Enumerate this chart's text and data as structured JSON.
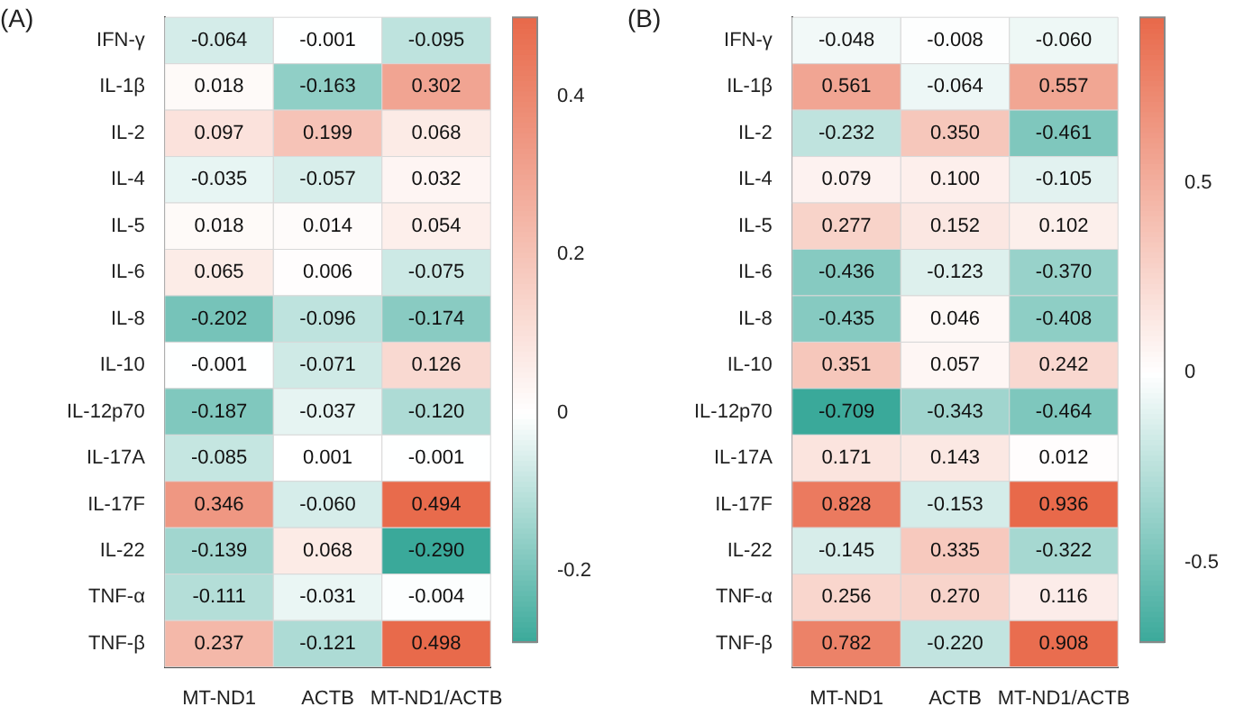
{
  "chart_data": [
    {
      "type": "heatmap",
      "title": "(A)",
      "categories": [
        "MT-ND1",
        "ACTB",
        "MT-ND1/ACTB"
      ],
      "y_categories": [
        "IFN-γ",
        "IL-1β",
        "IL-2",
        "IL-4",
        "IL-5",
        "IL-6",
        "IL-8",
        "IL-10",
        "IL-12p70",
        "IL-17A",
        "IL-17F",
        "IL-22",
        "TNF-α",
        "TNF-β"
      ],
      "cells": [
        [
          -0.064,
          -0.001,
          -0.095
        ],
        [
          0.018,
          -0.163,
          0.302
        ],
        [
          0.097,
          0.199,
          0.068
        ],
        [
          -0.035,
          -0.057,
          0.032
        ],
        [
          0.018,
          0.014,
          0.054
        ],
        [
          0.065,
          0.006,
          -0.075
        ],
        [
          -0.202,
          -0.096,
          -0.174
        ],
        [
          -0.001,
          -0.071,
          0.126
        ],
        [
          -0.187,
          -0.037,
          -0.12
        ],
        [
          -0.085,
          0.001,
          -0.001
        ],
        [
          0.346,
          -0.06,
          0.494
        ],
        [
          -0.139,
          0.068,
          -0.29
        ],
        [
          -0.111,
          -0.031,
          -0.004
        ],
        [
          0.237,
          -0.121,
          0.498
        ]
      ],
      "cell_labels": [
        [
          "-0.064",
          "-0.001",
          "-0.095"
        ],
        [
          "0.018",
          "-0.163",
          "0.302"
        ],
        [
          "0.097",
          "0.199",
          "0.068"
        ],
        [
          "-0.035",
          "-0.057",
          "0.032"
        ],
        [
          "0.018",
          "0.014",
          "0.054"
        ],
        [
          "0.065",
          "0.006",
          "-0.075"
        ],
        [
          "-0.202",
          "-0.096",
          "-0.174"
        ],
        [
          "-0.001",
          "-0.071",
          "0.126"
        ],
        [
          "-0.187",
          "-0.037",
          "-0.120"
        ],
        [
          "-0.085",
          "0.001",
          "-0.001"
        ],
        [
          "0.346",
          "-0.060",
          "0.494"
        ],
        [
          "-0.139",
          "0.068",
          "-0.290"
        ],
        [
          "-0.111",
          "-0.031",
          "-0.004"
        ],
        [
          "0.237",
          "-0.121",
          "0.498"
        ]
      ],
      "clim": [
        -0.29,
        0.5
      ],
      "cticks": [
        -0.2,
        0,
        0.2,
        0.4
      ],
      "colors": [
        "#3aa99a",
        "#ffffff",
        "#e8694a"
      ]
    },
    {
      "type": "heatmap",
      "title": "(B)",
      "categories": [
        "MT-ND1",
        "ACTB",
        "MT-ND1/ACTB"
      ],
      "y_categories": [
        "IFN-γ",
        "IL-1β",
        "IL-2",
        "IL-4",
        "IL-5",
        "IL-6",
        "IL-8",
        "IL-10",
        "IL-12p70",
        "IL-17A",
        "IL-17F",
        "IL-22",
        "TNF-α",
        "TNF-β"
      ],
      "cells": [
        [
          -0.048,
          -0.008,
          -0.06
        ],
        [
          0.561,
          -0.064,
          0.557
        ],
        [
          -0.232,
          0.35,
          -0.461
        ],
        [
          0.079,
          0.1,
          -0.105
        ],
        [
          0.277,
          0.152,
          0.102
        ],
        [
          -0.436,
          -0.123,
          -0.37
        ],
        [
          -0.435,
          0.046,
          -0.408
        ],
        [
          0.351,
          0.057,
          0.242
        ],
        [
          -0.709,
          -0.343,
          -0.464
        ],
        [
          0.171,
          0.143,
          0.012
        ],
        [
          0.828,
          -0.153,
          0.936
        ],
        [
          -0.145,
          0.335,
          -0.322
        ],
        [
          0.256,
          0.27,
          0.116
        ],
        [
          0.782,
          -0.22,
          0.908
        ]
      ],
      "cell_labels": [
        [
          "-0.048",
          "-0.008",
          "-0.060"
        ],
        [
          "0.561",
          "-0.064",
          "0.557"
        ],
        [
          "-0.232",
          "0.350",
          "-0.461"
        ],
        [
          "0.079",
          "0.100",
          "-0.105"
        ],
        [
          "0.277",
          "0.152",
          "0.102"
        ],
        [
          "-0.436",
          "-0.123",
          "-0.370"
        ],
        [
          "-0.435",
          "0.046",
          "-0.408"
        ],
        [
          "0.351",
          "0.057",
          "0.242"
        ],
        [
          "-0.709",
          "-0.343",
          "-0.464"
        ],
        [
          "0.171",
          "0.143",
          "0.012"
        ],
        [
          "0.828",
          "-0.153",
          "0.936"
        ],
        [
          "-0.145",
          "0.335",
          "-0.322"
        ],
        [
          "0.256",
          "0.270",
          "0.116"
        ],
        [
          "0.782",
          "-0.220",
          "0.908"
        ]
      ],
      "clim": [
        -0.709,
        0.936
      ],
      "cticks": [
        -0.5,
        0,
        0.5
      ],
      "colors": [
        "#3aa99a",
        "#ffffff",
        "#e8694a"
      ]
    }
  ]
}
